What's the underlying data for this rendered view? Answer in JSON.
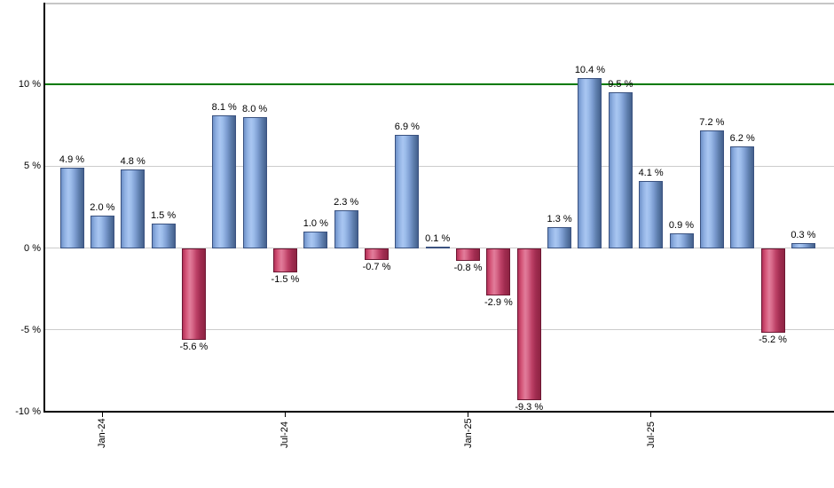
{
  "chart_data": {
    "type": "bar",
    "title": "",
    "xlabel": "",
    "ylabel": "",
    "ylim": [
      -10,
      15
    ],
    "grid": "on",
    "legend_position": "none",
    "values": [
      4.9,
      2.0,
      4.8,
      1.5,
      -5.6,
      8.1,
      8.0,
      -1.5,
      1.0,
      2.3,
      -0.7,
      6.9,
      0.1,
      -0.8,
      -2.9,
      -9.3,
      1.3,
      10.4,
      9.5,
      4.1,
      0.9,
      7.2,
      6.2,
      -5.2,
      0.3
    ],
    "bar_labels": [
      "4.9 %",
      "2.0 %",
      "4.8 %",
      "1.5 %",
      "-5.6 %",
      "8.1 %",
      "8.0 %",
      "-1.5 %",
      "1.0 %",
      "2.3 %",
      "-0.7 %",
      "6.9 %",
      "0.1 %",
      "-0.8 %",
      "-2.9 %",
      "-9.3 %",
      "1.3 %",
      "10.4 %",
      "9.5 %",
      "4.1 %",
      "0.9 %",
      "7.2 %",
      "6.2 %",
      "-5.2 %",
      "0.3 %"
    ],
    "y_ticks": [
      {
        "label": "10 %",
        "value": 10
      },
      {
        "label": "5 %",
        "value": 5
      },
      {
        "label": "0 %",
        "value": 0
      },
      {
        "label": "-5 %",
        "value": -5
      },
      {
        "label": "-10 %",
        "value": -10
      }
    ],
    "gridline_values": [
      5,
      0,
      -5
    ],
    "x_ticks": [
      {
        "label": "Jan-24",
        "bar_index": 1
      },
      {
        "label": "Jul-24",
        "bar_index": 7
      },
      {
        "label": "Jan-25",
        "bar_index": 13
      },
      {
        "label": "Jul-25",
        "bar_index": 19
      }
    ],
    "threshold_line": {
      "value": 10,
      "color": "#007a00"
    },
    "colors": {
      "positive_bar": "#7e9ed2",
      "positive_highlight": "#a9c6f2",
      "positive_border": "#3a5280",
      "negative_bar": "#bc4066",
      "negative_highlight": "#e27d9b",
      "negative_border": "#6d1733",
      "grid": "#cccccc",
      "top_border": "#c6c6c6",
      "axis": "#000000",
      "text": "#000000",
      "background": "#ffffff"
    }
  }
}
